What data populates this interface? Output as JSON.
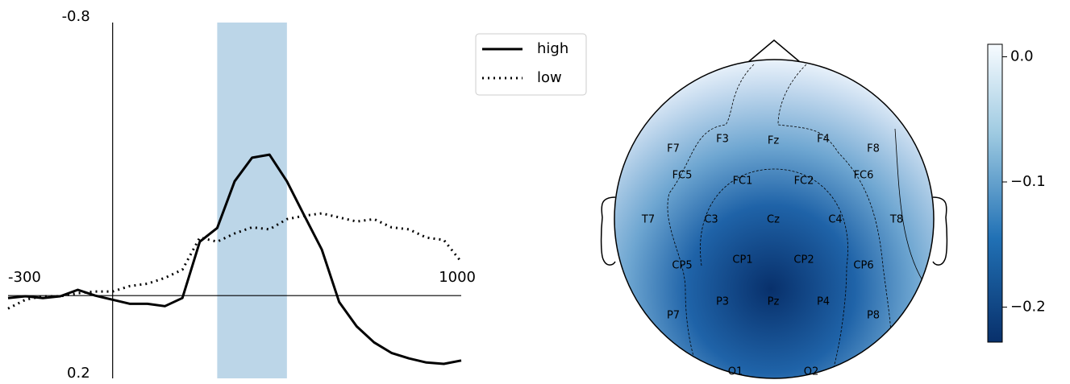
{
  "chart_data": [
    {
      "type": "line",
      "x": [
        -300,
        -250,
        -200,
        -150,
        -100,
        -50,
        0,
        50,
        100,
        150,
        200,
        250,
        300,
        350,
        400,
        450,
        500,
        550,
        600,
        650,
        700,
        750,
        800,
        850,
        900,
        950,
        1000
      ],
      "series": [
        {
          "name": "high",
          "color": "#000000",
          "style": "solid",
          "values": [
            0.007,
            0.002,
            0.007,
            0.002,
            -0.017,
            0,
            0.012,
            0.024,
            0.024,
            0.031,
            0.007,
            -0.158,
            -0.198,
            -0.335,
            -0.404,
            -0.413,
            -0.335,
            -0.234,
            -0.135,
            0.019,
            0.09,
            0.137,
            0.168,
            0.184,
            0.196,
            0.2,
            0.19
          ]
        },
        {
          "name": "low",
          "color": "#000000",
          "style": "dotted",
          "values": [
            0.038,
            0.012,
            0.002,
            0.002,
            -0.007,
            -0.012,
            -0.012,
            -0.028,
            -0.035,
            -0.052,
            -0.076,
            -0.17,
            -0.158,
            -0.182,
            -0.2,
            -0.194,
            -0.224,
            -0.234,
            -0.241,
            -0.229,
            -0.217,
            -0.224,
            -0.2,
            -0.194,
            -0.17,
            -0.163,
            -0.099
          ]
        }
      ],
      "xlim": [
        -300,
        1000
      ],
      "xticks": [
        -300,
        1000
      ],
      "ylim": [
        -0.8,
        0.2
      ],
      "yticks": [
        -0.8,
        0.2
      ],
      "highlight": [
        300,
        500
      ],
      "highlight_color": "#bcd6e8"
    },
    {
      "type": "topomap",
      "electrodes": [
        "F7",
        "F3",
        "Fz",
        "F4",
        "F8",
        "FC5",
        "FC1",
        "FC2",
        "FC6",
        "T7",
        "C3",
        "Cz",
        "C4",
        "T8",
        "CP5",
        "CP1",
        "CP2",
        "CP6",
        "P7",
        "P3",
        "Pz",
        "P4",
        "P8",
        "O1",
        "O2"
      ],
      "colorbar": {
        "lim": [
          -0.228,
          0.01
        ],
        "ticks": [
          {
            "value": 0,
            "label": "0.0"
          },
          {
            "value": -0.1,
            "label": "−0.1"
          },
          {
            "value": -0.2,
            "label": "−0.2"
          }
        ]
      }
    }
  ]
}
